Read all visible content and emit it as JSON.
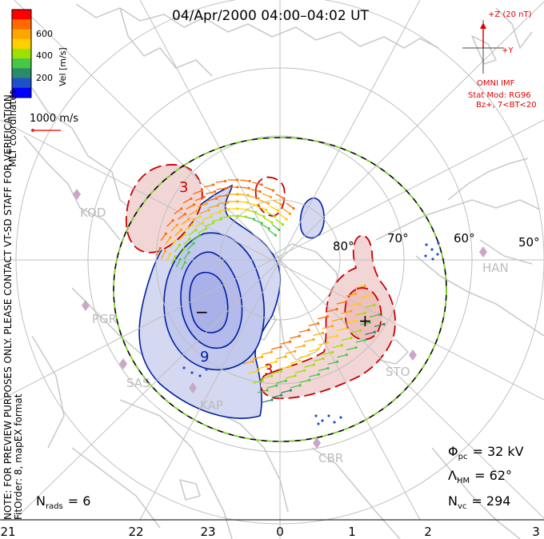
{
  "title": "04/Apr/2000 04:00–04:02 UT",
  "coord_label": "MLT coordinates",
  "side_note": "NOTE: FOR PREVIEW PURPOSES ONLY. PLEASE CONTACT VT-SD STAFF FOR VERIFICATION.",
  "fit_note": "FitOrder: 8, mapEX format",
  "colorbar": {
    "label": "Vel [m/s]",
    "ticks": [
      "600",
      "400",
      "200"
    ],
    "colors": [
      "#ff0000",
      "#ff6a00",
      "#ffa500",
      "#ffd000",
      "#a0e000",
      "#46c846",
      "#2a8a6a",
      "#2050c8",
      "#0000ff"
    ]
  },
  "scale_vector": {
    "label": "1000 m/s",
    "color": "#ff2020"
  },
  "imf": {
    "z_label": "+Z (20 nT)",
    "y_label": "+Y",
    "source": "OMNI IMF",
    "model_line1": "Stat Mod: RG96",
    "model_line2": "Bz+, 7<BT<20",
    "color": "#e00000"
  },
  "lat_labels": [
    "80°",
    "70°",
    "60°",
    "50°"
  ],
  "stations": [
    "KOD",
    "PGR",
    "SAS",
    "KAP",
    "HAN",
    "STO",
    "CBR"
  ],
  "contour_labels": [
    "3",
    "3",
    "9"
  ],
  "markers": {
    "plus": "+",
    "minus": "−"
  },
  "stats": {
    "phi": {
      "symbol": "Φ",
      "sub": "pc",
      "value": "= 32 kV"
    },
    "lambda": {
      "symbol": "Λ",
      "sub": "HM",
      "value": "= 62°"
    },
    "nvc": {
      "symbol": "N",
      "sub": "vc",
      "value": "= 294"
    },
    "nrads": {
      "symbol": "N",
      "sub": "rads",
      "value": "= 6"
    }
  },
  "mlt_axis": [
    "21",
    "22",
    "23",
    "0",
    "1",
    "2",
    "3"
  ],
  "colors": {
    "positive_contour": "#c80000",
    "negative_contour": "#0020a0",
    "positive_fill": "#f2d6d6",
    "negative_fill": "#d4d8f0",
    "negative_fill_inner": "#aab0e8",
    "coastline": "#c8cccc",
    "grid": "#c0c0c0",
    "station": "#c8a8c8",
    "hmb_dash": "#80e020"
  }
}
